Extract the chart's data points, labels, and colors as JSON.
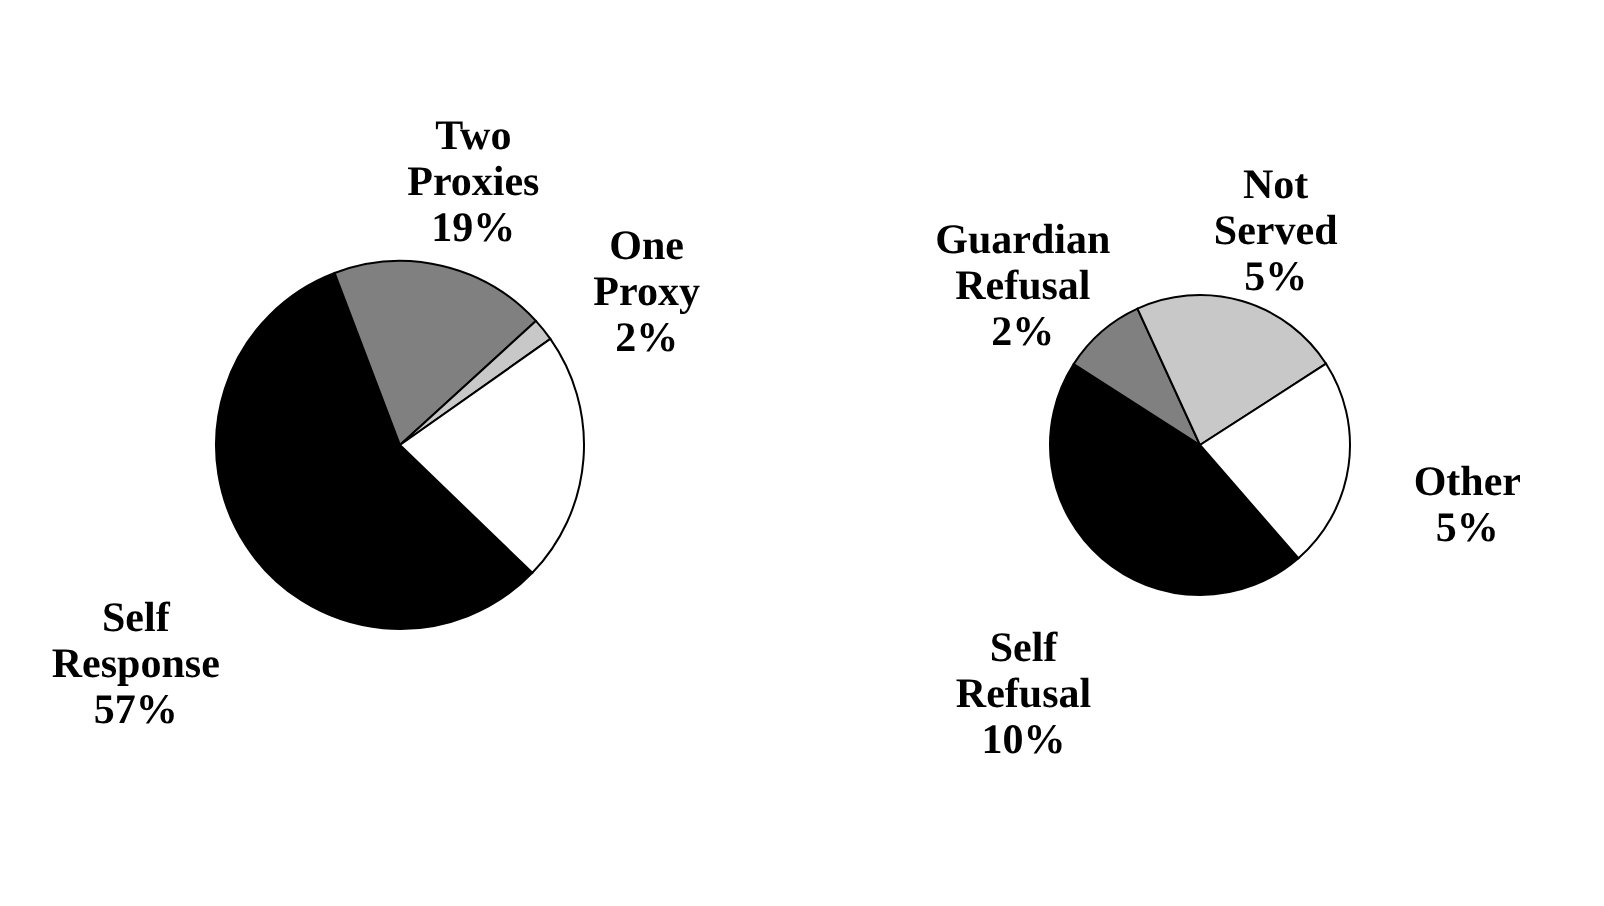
{
  "chart_data": [
    {
      "type": "pie",
      "categories": [
        "Self Response",
        "Two Proxies",
        "One Proxy",
        null
      ],
      "values": [
        57,
        19,
        2,
        22
      ],
      "colors": [
        "#000000",
        "#808080",
        "#c8c8c8",
        "#ffffff"
      ],
      "value_labels": [
        "57%",
        "19%",
        "2%",
        null
      ]
    },
    {
      "type": "pie",
      "categories": [
        "Self Refusal",
        "Guardian Refusal",
        "Not Served",
        "Other"
      ],
      "values": [
        10,
        2,
        5,
        5
      ],
      "colors": [
        "#000000",
        "#808080",
        "#c8c8c8",
        "#ffffff"
      ],
      "value_labels": [
        "10%",
        "2%",
        "5%",
        "5%"
      ]
    }
  ]
}
